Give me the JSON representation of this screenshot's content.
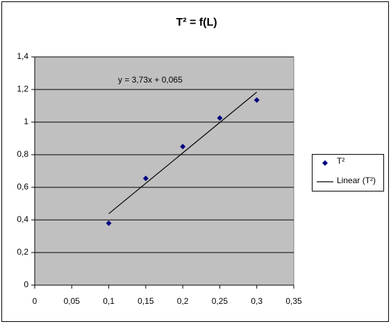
{
  "chart_data": {
    "type": "scatter",
    "title": "T² = f(L)",
    "series": [
      {
        "name": "T²",
        "color": "#000080",
        "x": [
          0.1,
          0.15,
          0.2,
          0.25,
          0.3
        ],
        "values": [
          0.38,
          0.655,
          0.85,
          1.025,
          1.135
        ]
      }
    ],
    "trendline": {
      "name": "Linear (T²)",
      "color": "#000000",
      "slope": 3.73,
      "intercept": 0.065,
      "equation": "y = 3,73x + 0,065"
    },
    "xlim": [
      0,
      0.35
    ],
    "xticks": [
      0,
      {
        "value": 0.05,
        "label": "0,05"
      },
      {
        "value": 0.1,
        "label": "0,1"
      },
      {
        "value": 0.15,
        "label": "0,15"
      },
      {
        "value": 0.2,
        "label": "0,2"
      },
      {
        "value": 0.25,
        "label": "0,25"
      },
      {
        "value": 0.3,
        "label": "0,3"
      },
      {
        "value": 0.35,
        "label": "0,35"
      }
    ],
    "ylim": [
      0,
      1.4
    ],
    "yticks": [
      0,
      {
        "value": 0.2,
        "label": "0,2"
      },
      {
        "value": 0.4,
        "label": "0,4"
      },
      {
        "value": 0.6,
        "label": "0,6"
      },
      {
        "value": 0.8,
        "label": "0,8"
      },
      1,
      {
        "value": 1.2,
        "label": "1,2"
      },
      {
        "value": 1.4,
        "label": "1,4"
      }
    ],
    "grid": true,
    "plot_background": "#c0c0c0",
    "legend": "right"
  }
}
